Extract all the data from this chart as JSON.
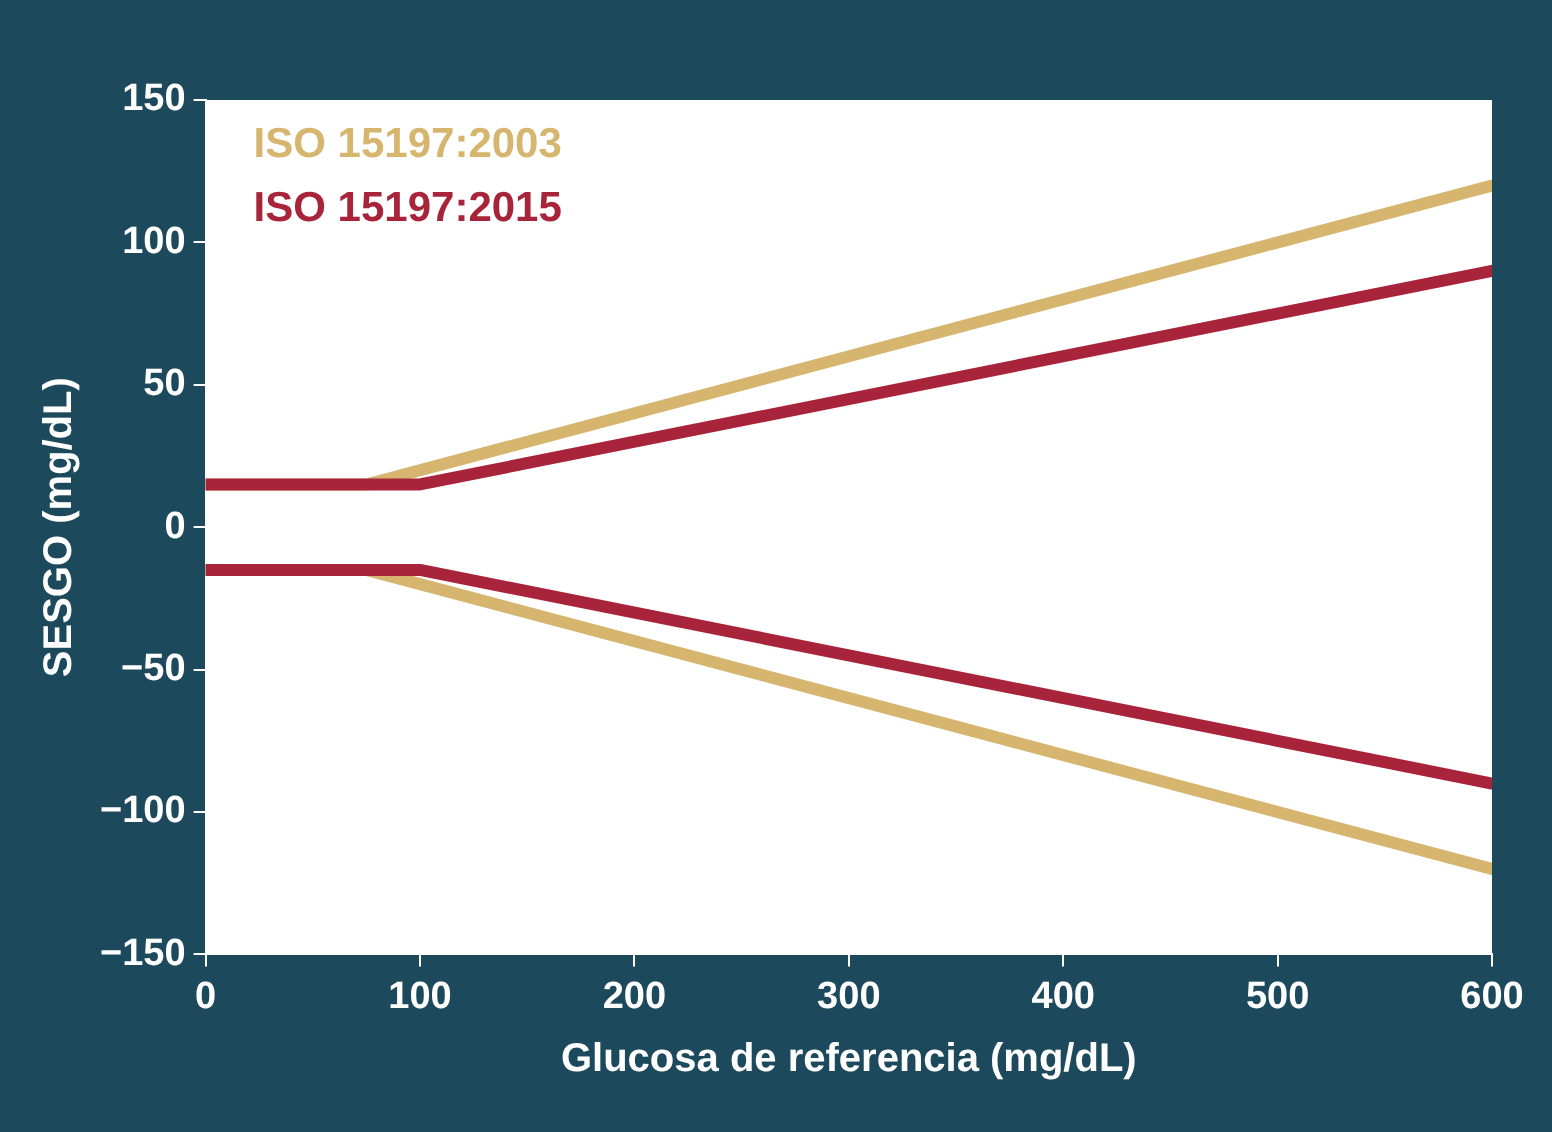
{
  "chart_data": {
    "type": "line",
    "xlabel": "Glucosa de referencia (mg/dL)",
    "ylabel": "SESGO (mg/dL)",
    "series": [
      {
        "name": "ISO 15197:2003",
        "color": "#d6b56e",
        "x": [
          0,
          75,
          600
        ],
        "values": [
          15,
          15,
          120
        ]
      },
      {
        "name": "ISO 15197:2015",
        "color": "#a8243a",
        "x": [
          0,
          100,
          600
        ],
        "values": [
          15,
          15,
          90
        ]
      },
      {
        "color": "#d6b56e",
        "x": [
          0,
          75,
          600
        ],
        "values": [
          -15,
          -15,
          -120
        ]
      },
      {
        "color": "#a8243a",
        "x": [
          0,
          100,
          600
        ],
        "values": [
          -15,
          -15,
          -90
        ]
      }
    ],
    "xlim": [
      0,
      600
    ],
    "xticks": [
      0,
      100,
      200,
      300,
      400,
      500,
      600
    ],
    "ylim": [
      -150,
      150
    ],
    "yticks": [
      {
        "value": -150,
        "label": "−150"
      },
      {
        "value": -100,
        "label": "−100"
      },
      {
        "value": -50,
        "label": "−50"
      },
      0,
      50,
      100,
      150
    ],
    "grid": false,
    "legend": "top left",
    "marker": "none",
    "line_style": "solid"
  }
}
